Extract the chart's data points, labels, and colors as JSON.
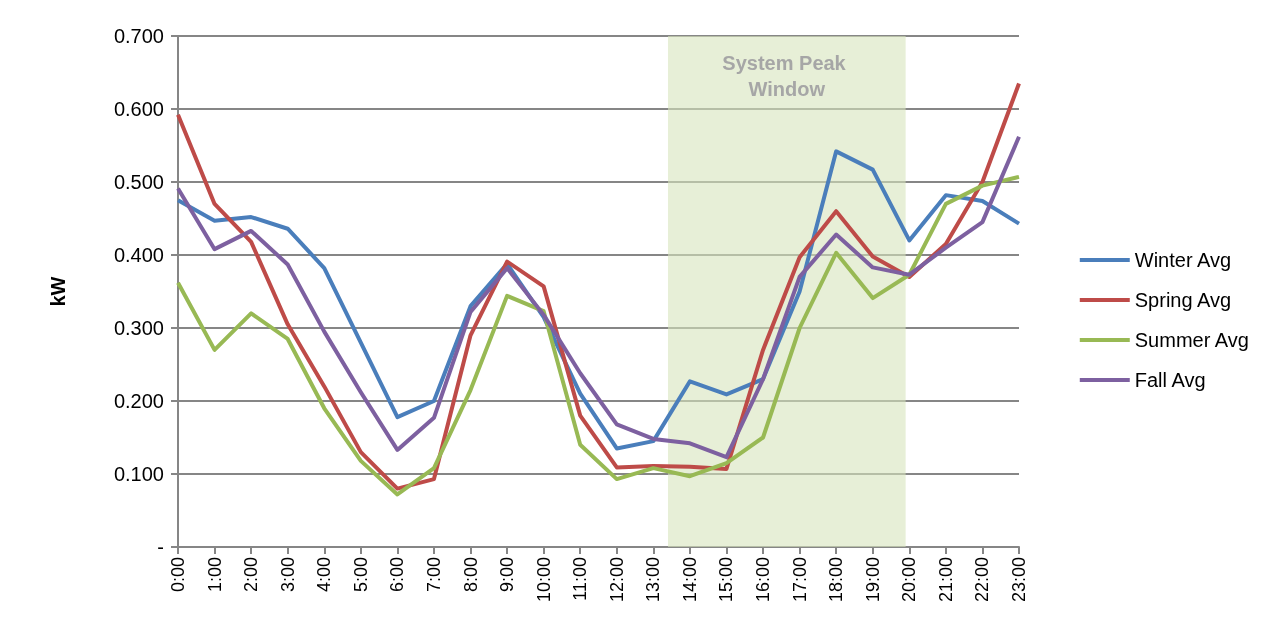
{
  "chart_data": {
    "type": "line",
    "ylabel": "kW",
    "x": [
      0,
      1,
      2,
      3,
      4,
      5,
      6,
      7,
      8,
      9,
      10,
      11,
      12,
      13,
      14,
      15,
      16,
      17,
      18,
      19,
      20,
      21,
      22,
      23
    ],
    "series": [
      {
        "name": "Winter Avg",
        "color": "#4a7ebb",
        "values": [
          0.475,
          0.447,
          0.452,
          0.436,
          0.382,
          0.28,
          0.178,
          0.2,
          0.33,
          0.388,
          0.315,
          0.21,
          0.135,
          0.145,
          0.227,
          0.209,
          0.23,
          0.35,
          0.542,
          0.517,
          0.42,
          0.482,
          0.474,
          0.443
        ]
      },
      {
        "name": "Spring Avg",
        "color": "#be4b48",
        "values": [
          0.592,
          0.47,
          0.418,
          0.305,
          0.22,
          0.13,
          0.08,
          0.093,
          0.29,
          0.391,
          0.357,
          0.18,
          0.109,
          0.111,
          0.11,
          0.107,
          0.27,
          0.397,
          0.46,
          0.398,
          0.37,
          0.415,
          0.5,
          0.635
        ]
      },
      {
        "name": "Summer Avg",
        "color": "#98b954",
        "values": [
          0.362,
          0.27,
          0.32,
          0.285,
          0.19,
          0.118,
          0.072,
          0.108,
          0.215,
          0.344,
          0.323,
          0.14,
          0.093,
          0.108,
          0.097,
          0.115,
          0.15,
          0.3,
          0.403,
          0.341,
          0.373,
          0.47,
          0.495,
          0.507
        ]
      },
      {
        "name": "Fall Avg",
        "color": "#7d60a0",
        "values": [
          0.491,
          0.408,
          0.433,
          0.387,
          0.295,
          0.212,
          0.133,
          0.177,
          0.322,
          0.382,
          0.318,
          0.238,
          0.168,
          0.148,
          0.142,
          0.123,
          0.23,
          0.37,
          0.428,
          0.383,
          0.373,
          0.41,
          0.445,
          0.562
        ]
      }
    ],
    "xlim": [
      0,
      23
    ],
    "xticks": [
      {
        "value": 0,
        "label": "0:00"
      },
      {
        "value": 1,
        "label": "1:00"
      },
      {
        "value": 2,
        "label": "2:00"
      },
      {
        "value": 3,
        "label": "3:00"
      },
      {
        "value": 4,
        "label": "4:00"
      },
      {
        "value": 5,
        "label": "5:00"
      },
      {
        "value": 6,
        "label": "6:00"
      },
      {
        "value": 7,
        "label": "7:00"
      },
      {
        "value": 8,
        "label": "8:00"
      },
      {
        "value": 9,
        "label": "9:00"
      },
      {
        "value": 10,
        "label": "10:00"
      },
      {
        "value": 11,
        "label": "11:00"
      },
      {
        "value": 12,
        "label": "12:00"
      },
      {
        "value": 13,
        "label": "13:00"
      },
      {
        "value": 14,
        "label": "14:00"
      },
      {
        "value": 15,
        "label": "15:00"
      },
      {
        "value": 16,
        "label": "16:00"
      },
      {
        "value": 17,
        "label": "17:00"
      },
      {
        "value": 18,
        "label": "18:00"
      },
      {
        "value": 19,
        "label": "19:00"
      },
      {
        "value": 20,
        "label": "20:00"
      },
      {
        "value": 21,
        "label": "21:00"
      },
      {
        "value": 22,
        "label": "22:00"
      },
      {
        "value": 23,
        "label": "23:00"
      }
    ],
    "ylim": [
      0,
      0.7
    ],
    "yticks": [
      {
        "value": 0,
        "label": "-"
      },
      {
        "value": 0.1,
        "label": "0.100"
      },
      {
        "value": 0.2,
        "label": "0.200"
      },
      {
        "value": 0.3,
        "label": "0.300"
      },
      {
        "value": 0.4,
        "label": "0.400"
      },
      {
        "value": 0.5,
        "label": "0.500"
      },
      {
        "value": 0.6,
        "label": "0.600"
      },
      {
        "value": 0.7,
        "label": "0.700"
      }
    ],
    "bands": [
      {
        "axis": "x",
        "from": 13.4,
        "to": 19.9,
        "label": "System Peak Window",
        "color": "#d7e4bd"
      }
    ],
    "grid": "y",
    "legend": "right",
    "marker": "none",
    "line_style": "solid"
  }
}
